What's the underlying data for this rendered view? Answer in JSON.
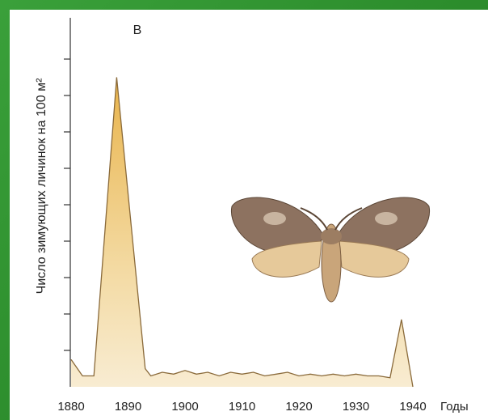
{
  "chart_data": {
    "type": "area",
    "panel_label": "В",
    "y_label": "Число зимующих личинок на 100 м²",
    "x_label": "Годы",
    "x": [
      1880,
      1882,
      1884,
      1888,
      1893,
      1894,
      1896,
      1898,
      1900,
      1902,
      1904,
      1906,
      1908,
      1910,
      1912,
      1914,
      1916,
      1918,
      1920,
      1922,
      1924,
      1926,
      1928,
      1930,
      1932,
      1934,
      1936,
      1938,
      1940
    ],
    "values": [
      0.75,
      0.3,
      0.3,
      8.5,
      0.5,
      0.3,
      0.4,
      0.35,
      0.45,
      0.35,
      0.4,
      0.3,
      0.4,
      0.35,
      0.4,
      0.3,
      0.35,
      0.4,
      0.3,
      0.35,
      0.3,
      0.35,
      0.3,
      0.35,
      0.3,
      0.3,
      0.25,
      1.85,
      0
    ],
    "color": "#8a6a3a",
    "xlim": [
      1880,
      1940
    ],
    "xticks": [
      1880,
      1890,
      1900,
      1910,
      1920,
      1930,
      1940
    ],
    "ylim": [
      0,
      10
    ],
    "yticks": [
      1,
      2,
      3,
      4,
      5,
      6,
      7,
      8,
      9
    ]
  }
}
